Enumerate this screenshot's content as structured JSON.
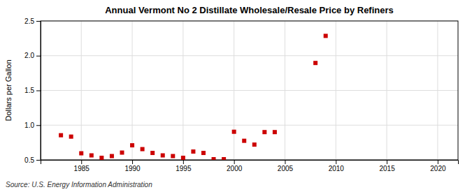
{
  "chart_data": {
    "type": "scatter",
    "title": "Annual Vermont No 2 Distillate Wholesale/Resale Price by Refiners",
    "ylabel": "Dollars per Gallon",
    "source": "Source: U.S. Energy Information Administration",
    "color": "#cc0000",
    "marker": "square",
    "grid": true,
    "xlim": [
      1981,
      2022
    ],
    "xticks": [
      1985,
      1990,
      1995,
      2000,
      2005,
      2010,
      2015,
      2020
    ],
    "ylim": [
      0.5,
      2.5
    ],
    "yticks": [
      0.5,
      {
        "value": 1.0,
        "label": "1.0"
      },
      1.5,
      {
        "value": 2.0,
        "label": "2.0"
      },
      2.5
    ],
    "x": [
      1983,
      1984,
      1985,
      1986,
      1987,
      1988,
      1989,
      1990,
      1991,
      1992,
      1993,
      1994,
      1995,
      1996,
      1997,
      1998,
      1999,
      2000,
      2001,
      2002,
      2003,
      2004,
      2008,
      2009
    ],
    "values": [
      0.855,
      0.835,
      0.595,
      0.565,
      0.53,
      0.555,
      0.605,
      0.71,
      0.655,
      0.6,
      0.565,
      0.555,
      0.53,
      0.62,
      0.6,
      0.51,
      0.51,
      0.905,
      0.775,
      0.72,
      0.9,
      0.9,
      1.895,
      2.285
    ]
  }
}
